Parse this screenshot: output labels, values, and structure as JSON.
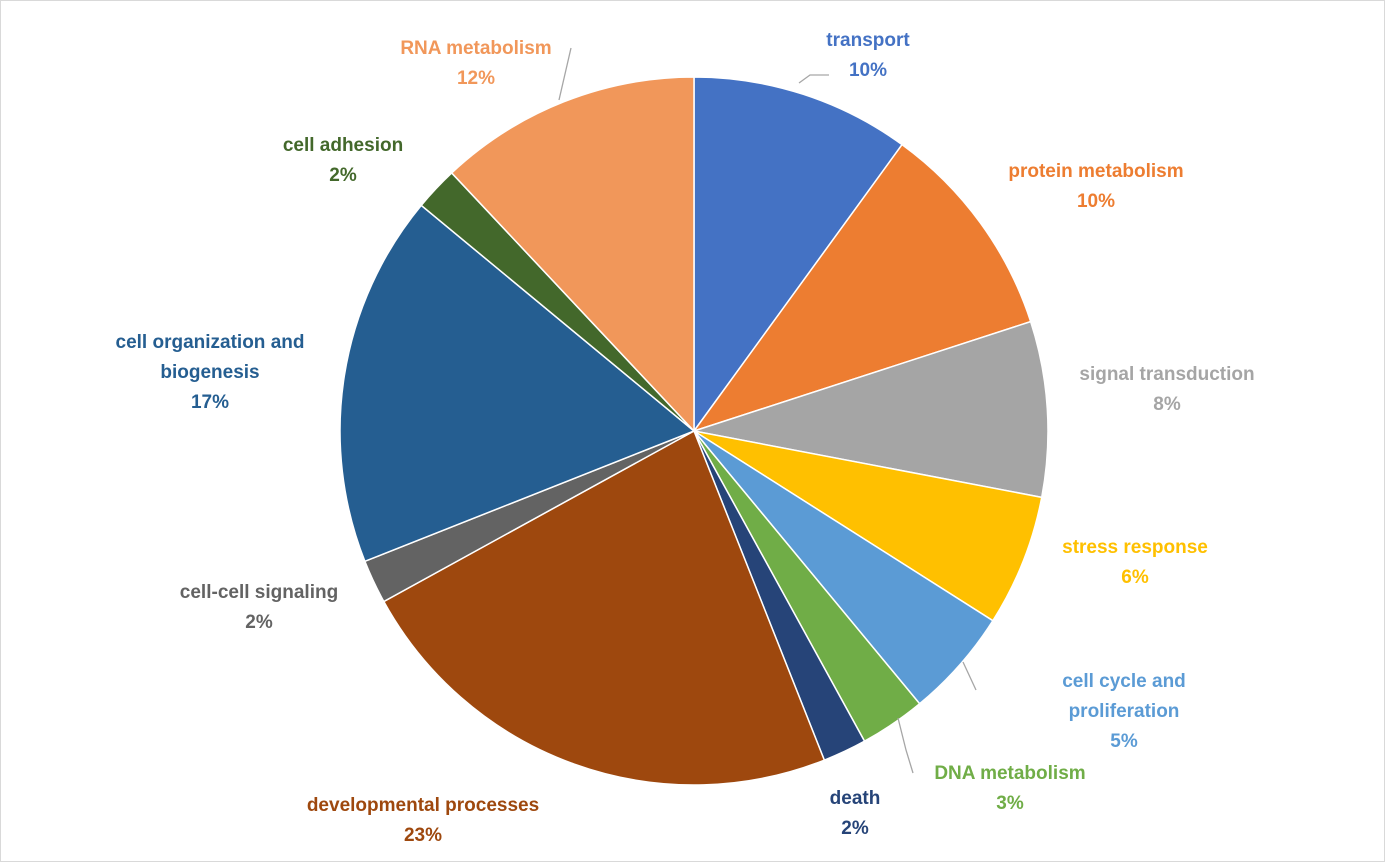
{
  "chart_data": {
    "type": "pie",
    "slices": [
      {
        "label": "transport",
        "value": 10,
        "pct_label": "10%",
        "color": "#4472C4"
      },
      {
        "label": "protein metabolism",
        "value": 10,
        "pct_label": "10%",
        "color": "#ED7D31"
      },
      {
        "label": "signal transduction",
        "value": 8,
        "pct_label": "8%",
        "color": "#A5A5A5"
      },
      {
        "label": "stress response",
        "value": 6,
        "pct_label": "6%",
        "color": "#FFC000"
      },
      {
        "label": "cell cycle and proliferation",
        "value": 5,
        "pct_label": "5%",
        "color": "#5B9BD5"
      },
      {
        "label": "DNA metabolism",
        "value": 3,
        "pct_label": "3%",
        "color": "#70AD47"
      },
      {
        "label": "death",
        "value": 2,
        "pct_label": "2%",
        "color": "#264478"
      },
      {
        "label": "developmental processes",
        "value": 23,
        "pct_label": "23%",
        "color": "#9E480E"
      },
      {
        "label": "cell-cell signaling",
        "value": 2,
        "pct_label": "2%",
        "color": "#636363"
      },
      {
        "label": "cell organization and biogenesis",
        "value": 17,
        "pct_label": "17%",
        "color": "#255E91"
      },
      {
        "label": "cell adhesion",
        "value": 2,
        "pct_label": "2%",
        "color": "#43682B"
      },
      {
        "label": "RNA metabolism",
        "value": 12,
        "pct_label": "12%",
        "color": "#F1975A"
      }
    ],
    "data_labels": "outside, category name and percentage",
    "legend": "none"
  }
}
